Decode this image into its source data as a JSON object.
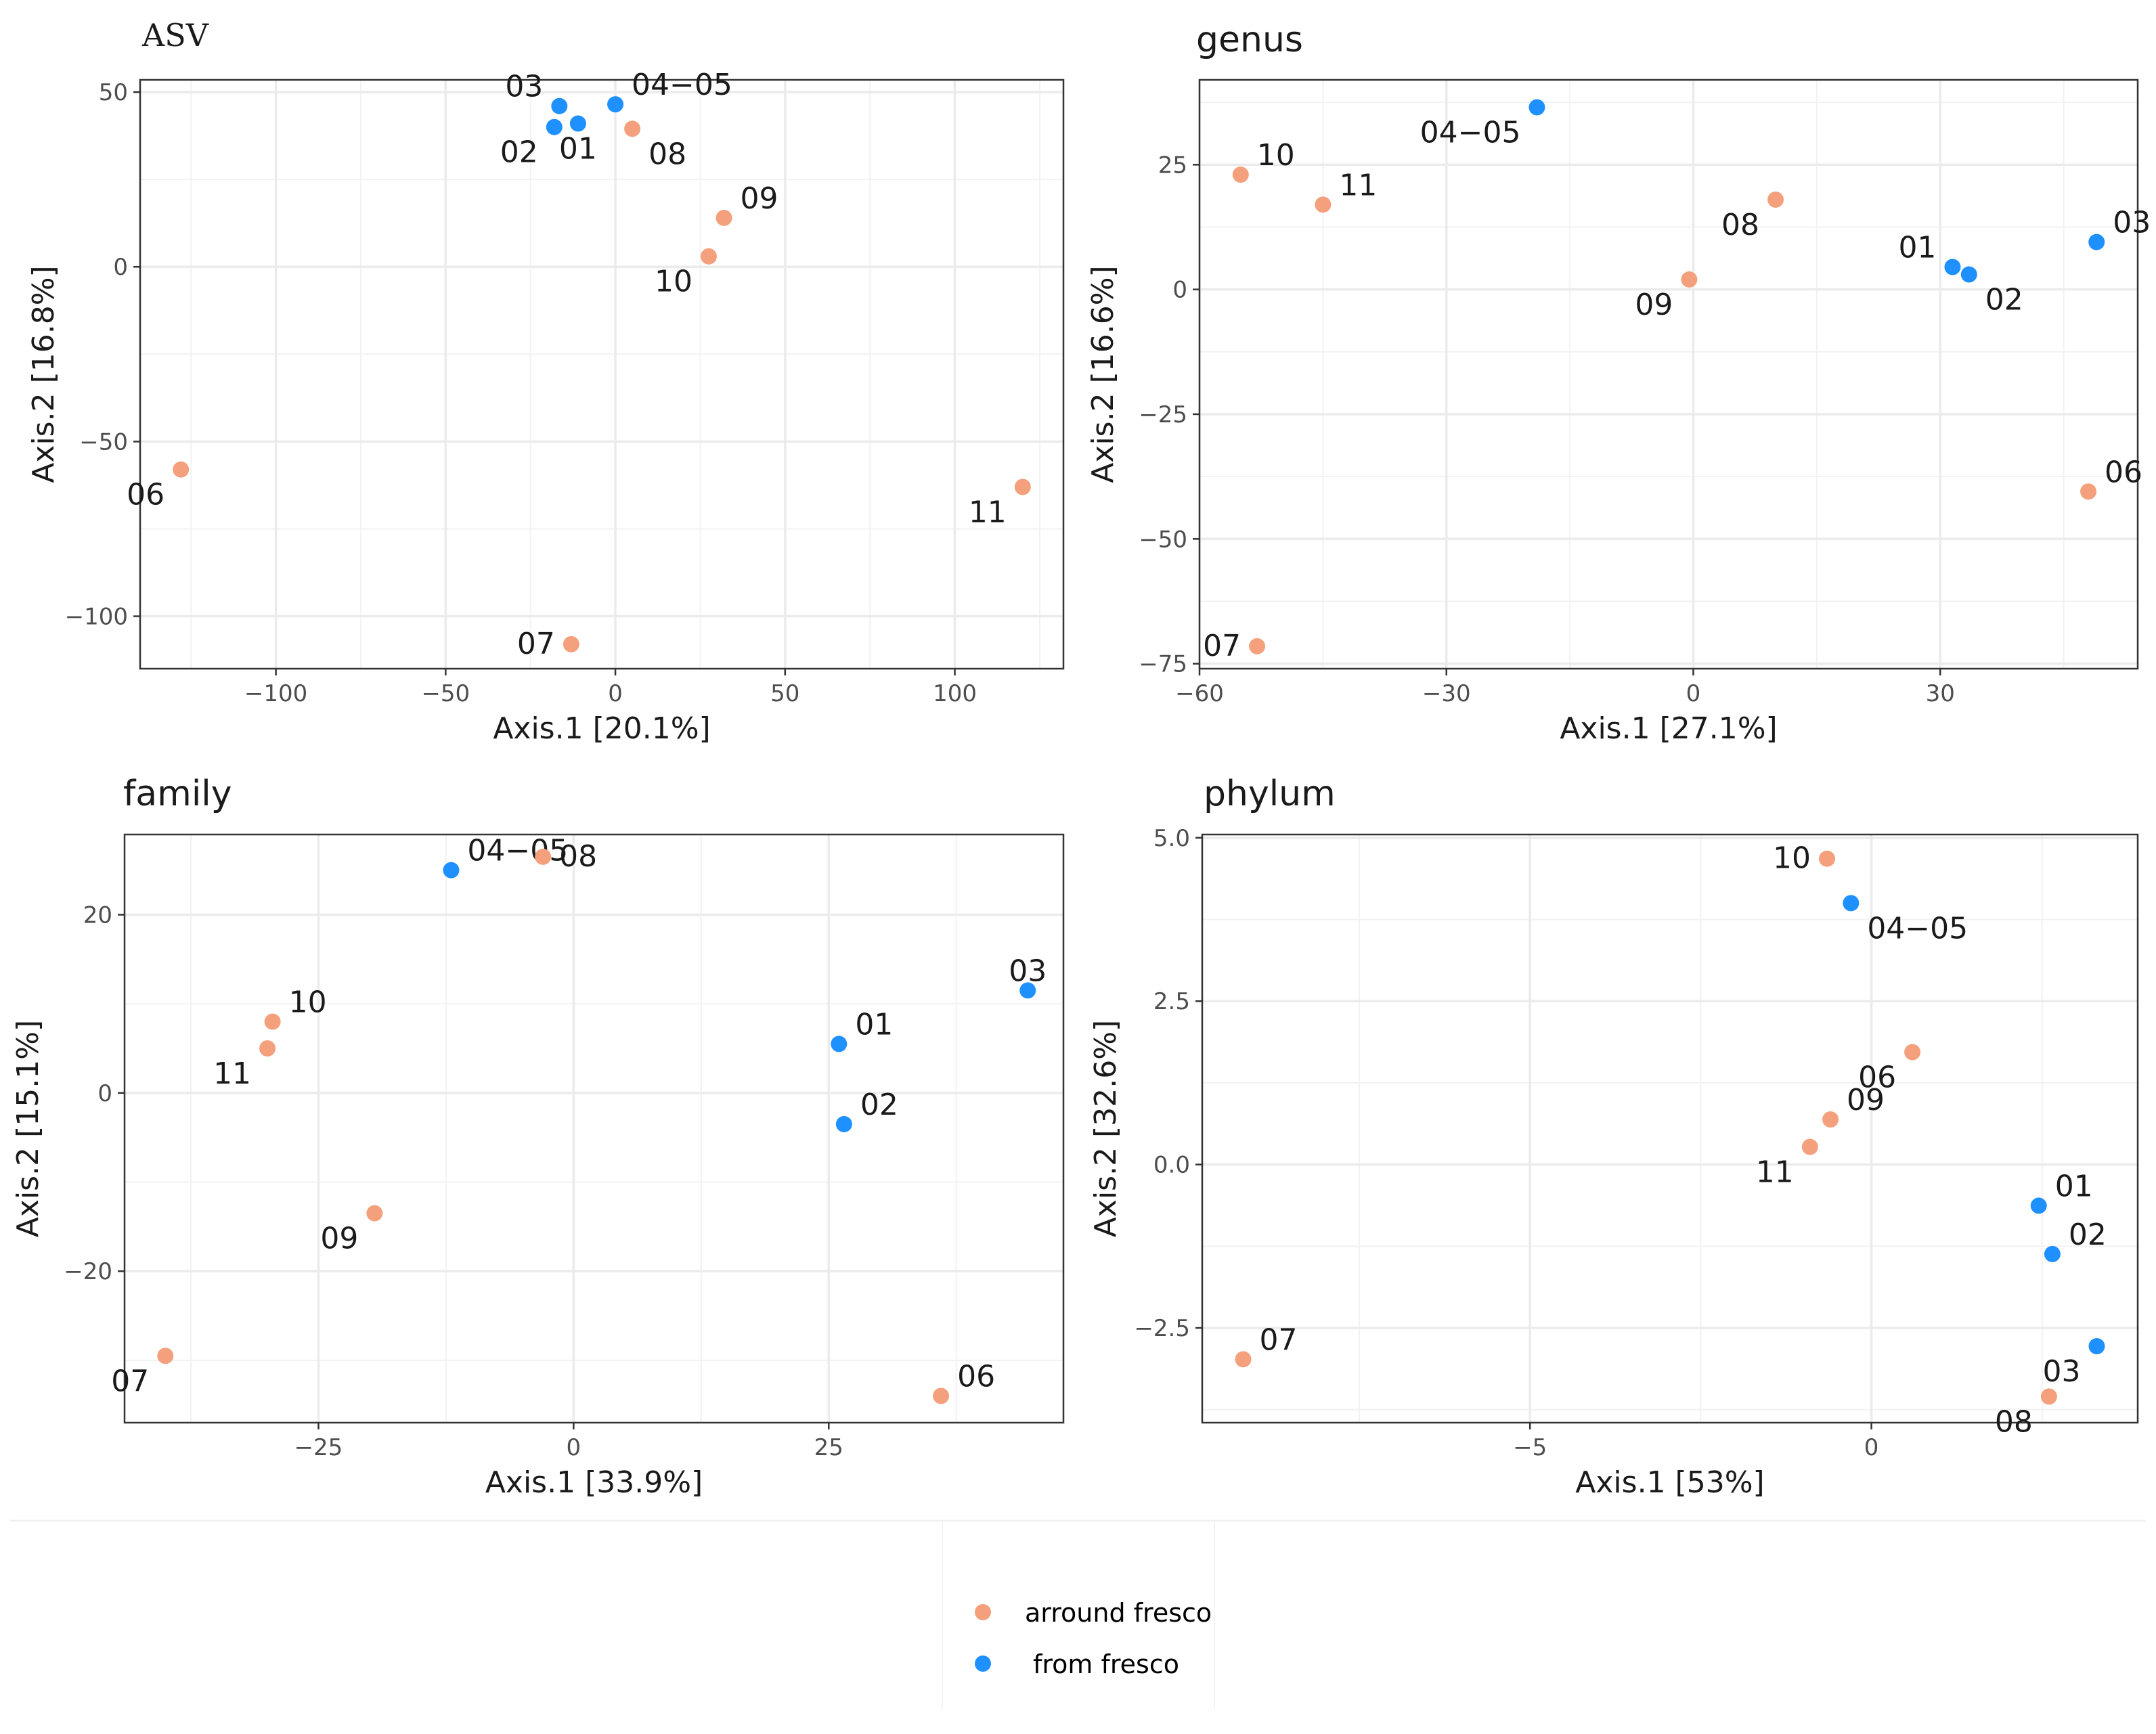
{
  "colors": {
    "arround_fresco": "#f4a07c",
    "from_fresco": "#1e90ff",
    "grid": "#ebebeb",
    "panel_border": "#333333",
    "text": "#1a1a1a",
    "tick_text": "#4d4d4d"
  },
  "legend": {
    "items": [
      {
        "label": "arround fresco",
        "group": "arround_fresco"
      },
      {
        "label": "from fresco",
        "group": "from_fresco"
      }
    ]
  },
  "chart_data": [
    {
      "type": "scatter",
      "title": "ASV",
      "xlabel": "Axis.1   [20.1%]",
      "ylabel": "Axis.2   [16.8%]",
      "xlim": [
        -140,
        132
      ],
      "ylim": [
        -115,
        53.5
      ],
      "xticks": [
        -100,
        -50,
        0,
        50,
        100
      ],
      "xtick_labels": [
        "−100",
        "−50",
        "0",
        "50",
        "100"
      ],
      "yticks": [
        -100,
        -50,
        0,
        50
      ],
      "ytick_labels": [
        "−100",
        "−50",
        "0",
        "50"
      ],
      "points": [
        {
          "label": "01",
          "x": -11,
          "y": 41,
          "group": "from_fresco",
          "label_dx": 0,
          "label_dy": 1
        },
        {
          "label": "02",
          "x": -18,
          "y": 40,
          "group": "from_fresco",
          "label_dx": -1,
          "label_dy": 1
        },
        {
          "label": "03",
          "x": -16.5,
          "y": 46,
          "group": "from_fresco",
          "label_dx": -1,
          "label_dy": -1
        },
        {
          "label": "04−05",
          "x": 0,
          "y": 46.5,
          "group": "from_fresco",
          "label_dx": 1,
          "label_dy": -1
        },
        {
          "label": "06",
          "x": -128,
          "y": -58,
          "group": "arround_fresco",
          "label_dx": -1,
          "label_dy": 1
        },
        {
          "label": "07",
          "x": -13,
          "y": -108,
          "group": "arround_fresco",
          "label_dx": -1,
          "label_dy": 0
        },
        {
          "label": "08",
          "x": 5,
          "y": 39.5,
          "group": "arround_fresco",
          "label_dx": 1,
          "label_dy": 1
        },
        {
          "label": "09",
          "x": 32,
          "y": 14,
          "group": "arround_fresco",
          "label_dx": 1,
          "label_dy": -1
        },
        {
          "label": "10",
          "x": 27.5,
          "y": 3,
          "group": "arround_fresco",
          "label_dx": -1,
          "label_dy": 1
        },
        {
          "label": "11",
          "x": 120,
          "y": -63,
          "group": "arround_fresco",
          "label_dx": -1,
          "label_dy": 1
        }
      ]
    },
    {
      "type": "scatter",
      "title": "genus",
      "xlabel": "Axis.1   [27.1%]",
      "ylabel": "Axis.2   [16.6%]",
      "xlim": [
        -60,
        54
      ],
      "ylim": [
        -76,
        42
      ],
      "xticks": [
        -60,
        -30,
        0,
        30
      ],
      "xtick_labels": [
        "−60",
        "−30",
        "0",
        "30"
      ],
      "yticks": [
        -75,
        -50,
        -25,
        0,
        25
      ],
      "ytick_labels": [
        "−75",
        "−50",
        "−25",
        "0",
        "25"
      ],
      "points": [
        {
          "label": "01",
          "x": 31.5,
          "y": 4.5,
          "group": "from_fresco",
          "label_dx": -1,
          "label_dy": -1
        },
        {
          "label": "02",
          "x": 33.5,
          "y": 3,
          "group": "from_fresco",
          "label_dx": 1,
          "label_dy": 1
        },
        {
          "label": "03",
          "x": 49,
          "y": 9.5,
          "group": "from_fresco",
          "label_dx": 1,
          "label_dy": -1
        },
        {
          "label": "04−05",
          "x": -19,
          "y": 36.5,
          "group": "from_fresco",
          "label_dx": -1,
          "label_dy": 1
        },
        {
          "label": "06",
          "x": 48,
          "y": -40.5,
          "group": "arround_fresco",
          "label_dx": 1,
          "label_dy": -1
        },
        {
          "label": "07",
          "x": -53,
          "y": -71.5,
          "group": "arround_fresco",
          "label_dx": -1,
          "label_dy": 0
        },
        {
          "label": "08",
          "x": 10,
          "y": 18,
          "group": "arround_fresco",
          "label_dx": -1,
          "label_dy": 1
        },
        {
          "label": "09",
          "x": -0.5,
          "y": 2,
          "group": "arround_fresco",
          "label_dx": -1,
          "label_dy": 1
        },
        {
          "label": "10",
          "x": -55,
          "y": 23,
          "group": "arround_fresco",
          "label_dx": 1,
          "label_dy": -1
        },
        {
          "label": "11",
          "x": -45,
          "y": 17,
          "group": "arround_fresco",
          "label_dx": 1,
          "label_dy": -1
        }
      ]
    },
    {
      "type": "scatter",
      "title": "family",
      "xlabel": "Axis.1   [33.9%]",
      "ylabel": "Axis.2   [15.1%]",
      "xlim": [
        -44,
        48
      ],
      "ylim": [
        -37,
        29
      ],
      "xticks": [
        -25,
        0,
        25
      ],
      "xtick_labels": [
        "−25",
        "0",
        "25"
      ],
      "yticks": [
        -20,
        0,
        20
      ],
      "ytick_labels": [
        "−20",
        "0",
        "20"
      ],
      "points": [
        {
          "label": "01",
          "x": 26,
          "y": 5.5,
          "group": "from_fresco",
          "label_dx": 1,
          "label_dy": -1
        },
        {
          "label": "02",
          "x": 26.5,
          "y": -3.5,
          "group": "from_fresco",
          "label_dx": 1,
          "label_dy": -1
        },
        {
          "label": "03",
          "x": 44.5,
          "y": 11.5,
          "group": "from_fresco",
          "label_dx": 0,
          "label_dy": -1
        },
        {
          "label": "04−05",
          "x": -12,
          "y": 25,
          "group": "from_fresco",
          "label_dx": 1,
          "label_dy": -1
        },
        {
          "label": "06",
          "x": 36,
          "y": -34,
          "group": "arround_fresco",
          "label_dx": 1,
          "label_dy": -1
        },
        {
          "label": "07",
          "x": -40,
          "y": -29.5,
          "group": "arround_fresco",
          "label_dx": -1,
          "label_dy": 1
        },
        {
          "label": "08",
          "x": -3,
          "y": 26.5,
          "group": "arround_fresco",
          "label_dx": 1,
          "label_dy": 0
        },
        {
          "label": "09",
          "x": -19.5,
          "y": -13.5,
          "group": "arround_fresco",
          "label_dx": -1,
          "label_dy": 1
        },
        {
          "label": "10",
          "x": -29.5,
          "y": 8,
          "group": "arround_fresco",
          "label_dx": 1,
          "label_dy": -1
        },
        {
          "label": "11",
          "x": -30,
          "y": 5,
          "group": "arround_fresco",
          "label_dx": -1,
          "label_dy": 1
        }
      ]
    },
    {
      "type": "scatter",
      "title": "phylum",
      "xlabel": "Axis.1   [53%]",
      "ylabel": "Axis.2   [32.6%]",
      "xlim": [
        -9.8,
        3.9
      ],
      "ylim": [
        -3.95,
        5.05
      ],
      "xticks": [
        -5,
        0
      ],
      "xtick_labels": [
        "−5",
        "0"
      ],
      "yticks": [
        -2.5,
        0,
        2.5,
        5
      ],
      "ytick_labels": [
        "−2.5",
        "0.0",
        "2.5",
        "5.0"
      ],
      "points": [
        {
          "label": "01",
          "x": 2.45,
          "y": -0.63,
          "group": "from_fresco",
          "label_dx": 1,
          "label_dy": -1
        },
        {
          "label": "02",
          "x": 2.65,
          "y": -1.37,
          "group": "from_fresco",
          "label_dx": 1,
          "label_dy": -1
        },
        {
          "label": "03",
          "x": 3.3,
          "y": -2.78,
          "group": "from_fresco",
          "label_dx": -1,
          "label_dy": 1
        },
        {
          "label": "04−05",
          "x": -0.3,
          "y": 4.0,
          "group": "from_fresco",
          "label_dx": 1,
          "label_dy": 1
        },
        {
          "label": "06",
          "x": 0.6,
          "y": 1.72,
          "group": "arround_fresco",
          "label_dx": -1,
          "label_dy": 1
        },
        {
          "label": "07",
          "x": -9.2,
          "y": -2.98,
          "group": "arround_fresco",
          "label_dx": 1,
          "label_dy": -1
        },
        {
          "label": "08",
          "x": 2.6,
          "y": -3.55,
          "group": "arround_fresco",
          "label_dx": -1,
          "label_dy": 1
        },
        {
          "label": "09",
          "x": -0.6,
          "y": 0.69,
          "group": "arround_fresco",
          "label_dx": 1,
          "label_dy": -1
        },
        {
          "label": "10",
          "x": -0.65,
          "y": 4.68,
          "group": "arround_fresco",
          "label_dx": -1,
          "label_dy": 0
        },
        {
          "label": "11",
          "x": -0.9,
          "y": 0.27,
          "group": "arround_fresco",
          "label_dx": -1,
          "label_dy": 1
        }
      ]
    }
  ]
}
